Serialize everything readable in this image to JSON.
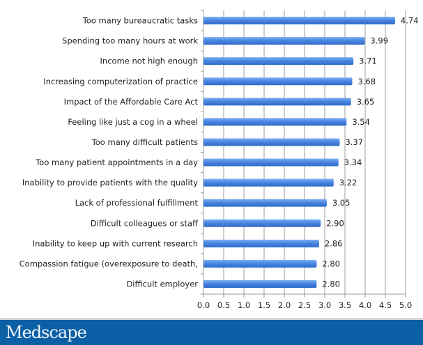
{
  "chart_data": {
    "type": "bar",
    "orientation": "horizontal",
    "title": "",
    "xlabel": "",
    "ylabel": "",
    "xlim": [
      0,
      5
    ],
    "x_ticks": [
      "0.0",
      "0.5",
      "1.0",
      "1.5",
      "2.0",
      "2.5",
      "3.0",
      "3.5",
      "4.0",
      "4.5",
      "5.0"
    ],
    "grid": true,
    "legend": "none",
    "bar_color": "#4a86e0",
    "categories": [
      "Too many bureaucratic tasks",
      "Spending too many hours at work",
      "Income not high enough",
      "Increasing computerization of practice",
      "Impact of the Affordable Care Act",
      "Feeling like just a cog in a wheel",
      "Too many difficult patients",
      "Too many patient appointments in a day",
      "Inability to provide patients with the quality",
      "Lack of professional fulfillment",
      "Difficult colleagues or staff",
      "Inability to keep up with current research",
      "Compassion fatigue (overexposure to death,",
      "Difficult employer"
    ],
    "values": [
      4.74,
      3.99,
      3.71,
      3.68,
      3.65,
      3.54,
      3.37,
      3.34,
      3.22,
      3.05,
      2.9,
      2.86,
      2.8,
      2.8
    ],
    "value_labels": [
      "4.74",
      "3.99",
      "3.71",
      "3.68",
      "3.65",
      "3.54",
      "3.37",
      "3.34",
      "3.22",
      "3.05",
      "2.90",
      "2.86",
      "2.80",
      "2.80"
    ]
  },
  "footer": {
    "brand": "Medscape",
    "color": "#0b5fa5"
  }
}
